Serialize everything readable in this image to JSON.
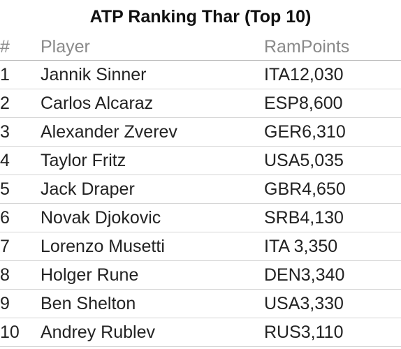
{
  "table": {
    "title": "ATP Ranking Thar (Top 10)",
    "header": [
      "#",
      "Player",
      "RamPoints"
    ],
    "rows": [
      [
        "1",
        "Jannik Sinner",
        "ITA12,030"
      ],
      [
        "2",
        "Carlos Alcaraz",
        "ESP8,600"
      ],
      [
        "3",
        "Alexander Zverev",
        "GER6,310"
      ],
      [
        "4",
        "Taylor Fritz",
        "USA5,035"
      ],
      [
        "5",
        "Jack Draper",
        "GBR4,650"
      ],
      [
        "6",
        "Novak Djokovic",
        "SRB4,130"
      ],
      [
        "7",
        "Lorenzo Musetti",
        "ITA 3,350"
      ],
      [
        "8",
        "Holger Rune",
        "DEN3,340"
      ],
      [
        "9",
        "Ben Shelton",
        "USA3,330"
      ],
      [
        "10",
        "Andrey Rublev",
        "RUS3,110"
      ]
    ]
  }
}
